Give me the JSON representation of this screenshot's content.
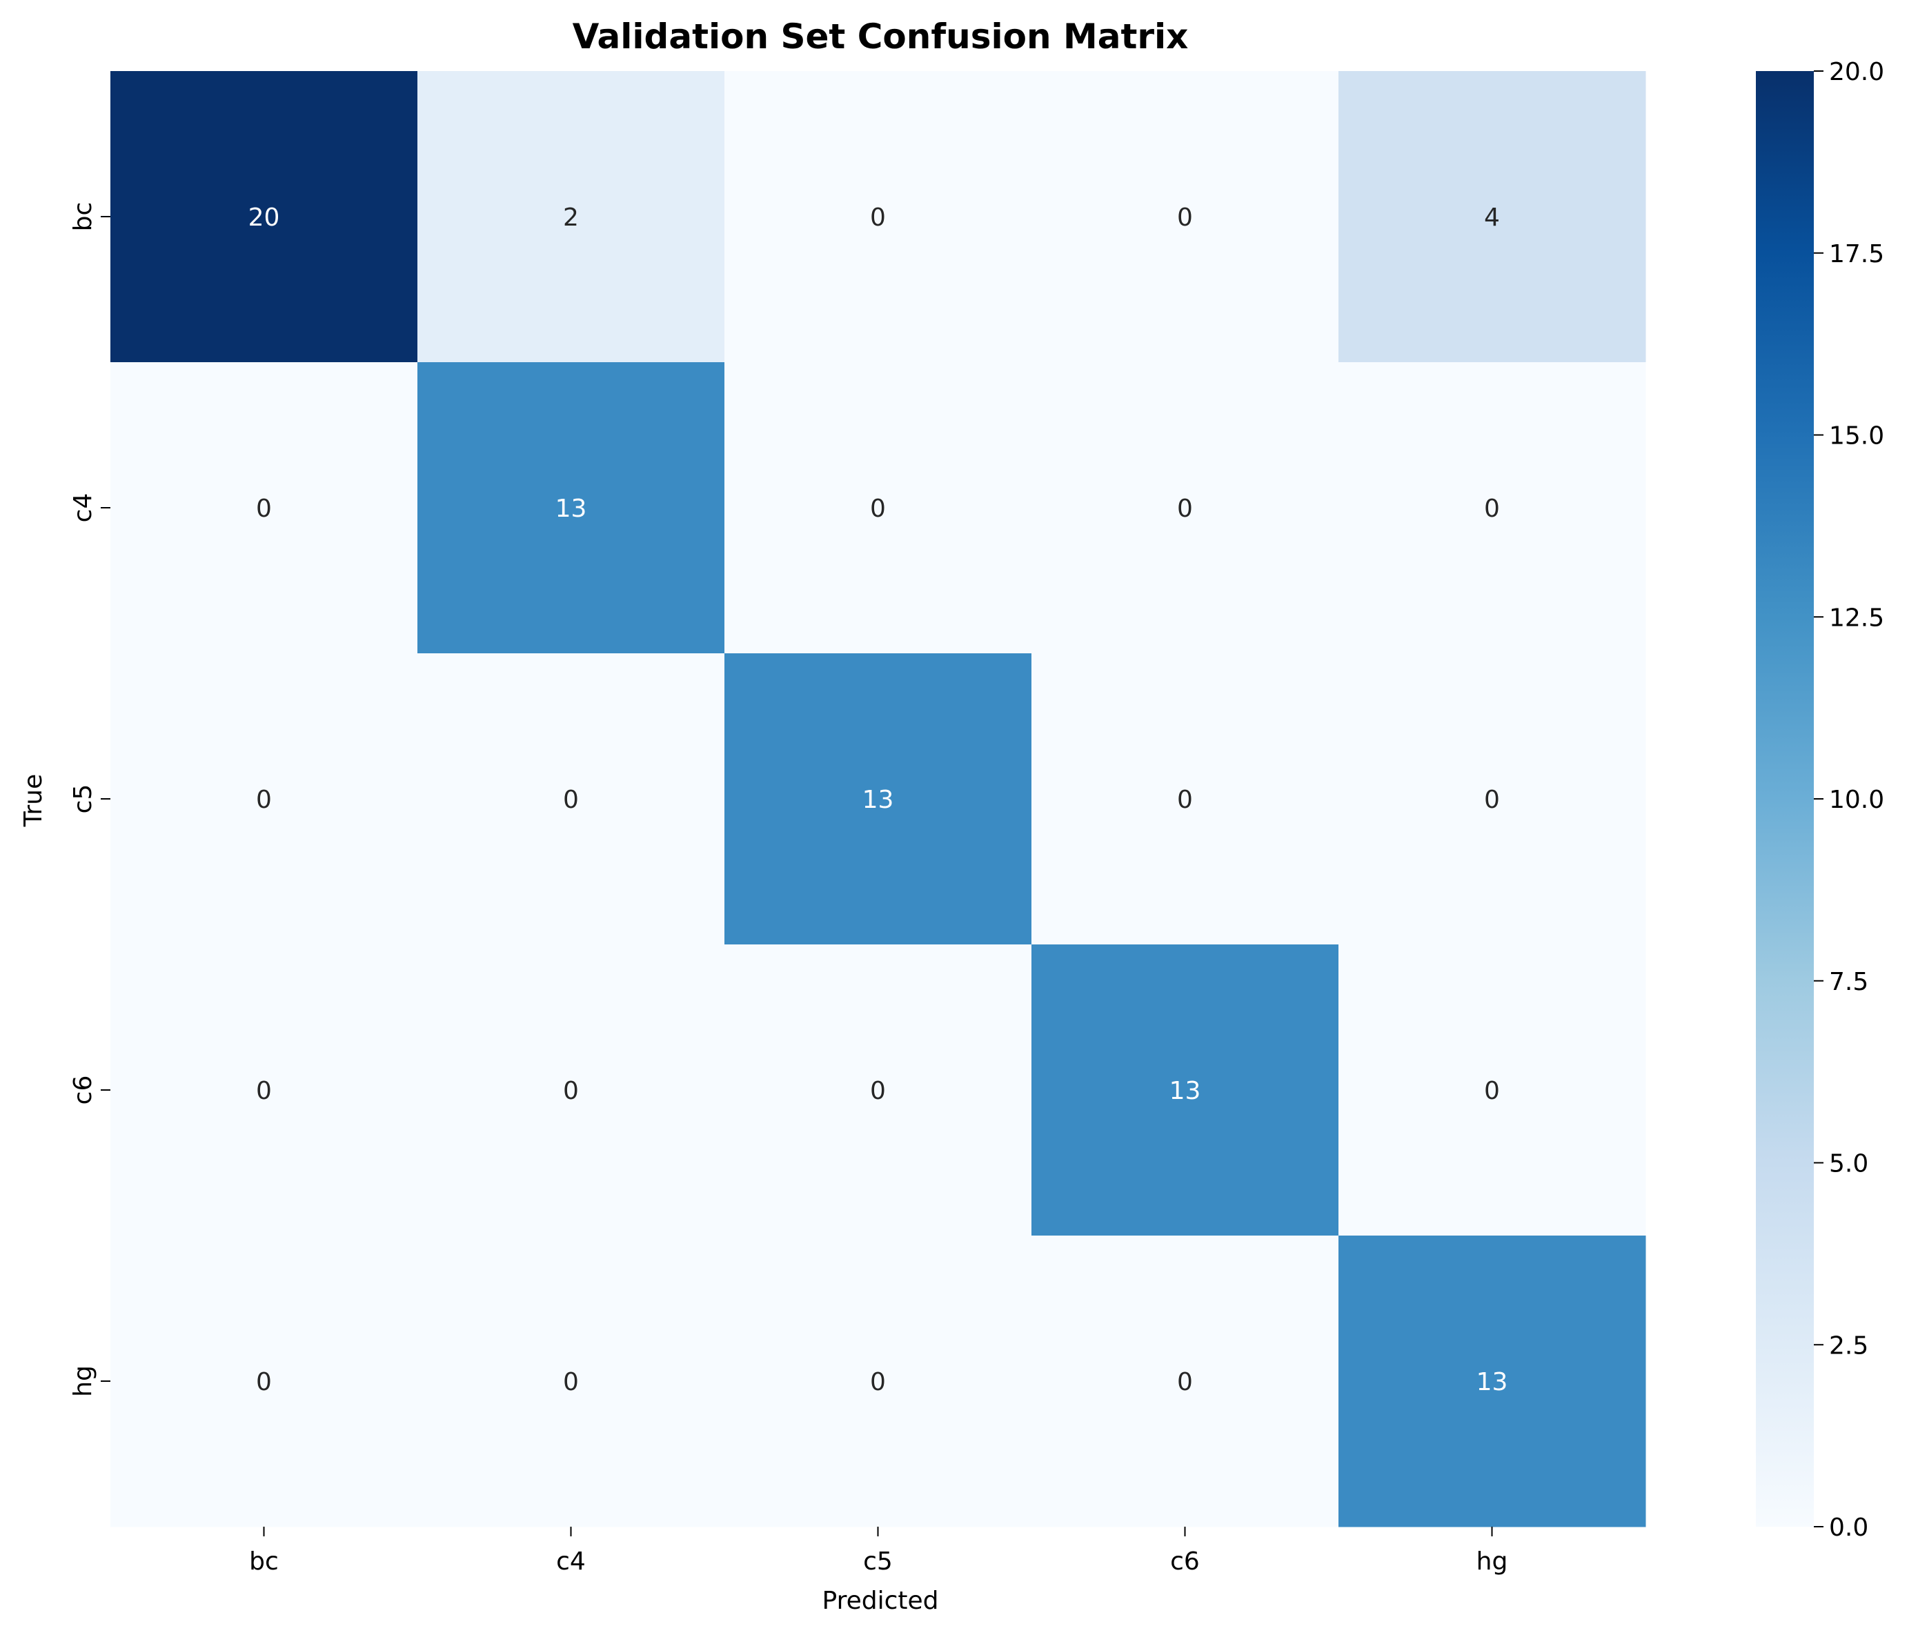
{
  "chart_data": {
    "type": "heatmap",
    "title": "Validation Set Confusion Matrix",
    "xlabel": "Predicted",
    "ylabel": "True",
    "x_categories": [
      "bc",
      "c4",
      "c5",
      "c6",
      "hg"
    ],
    "y_categories": [
      "bc",
      "c4",
      "c5",
      "c6",
      "hg"
    ],
    "values": [
      [
        20,
        2,
        0,
        0,
        4
      ],
      [
        0,
        13,
        0,
        0,
        0
      ],
      [
        0,
        0,
        13,
        0,
        0
      ],
      [
        0,
        0,
        0,
        13,
        0
      ],
      [
        0,
        0,
        0,
        0,
        13
      ]
    ],
    "colormap": "Blues",
    "vmin": 0,
    "vmax": 20,
    "colorbar_ticks": [
      0.0,
      2.5,
      5.0,
      7.5,
      10.0,
      12.5,
      15.0,
      17.5,
      20.0
    ],
    "colorbar_tick_labels": [
      "0.0",
      "2.5",
      "5.0",
      "7.5",
      "10.0",
      "12.5",
      "15.0",
      "17.5",
      "20.0"
    ],
    "grid": false
  }
}
